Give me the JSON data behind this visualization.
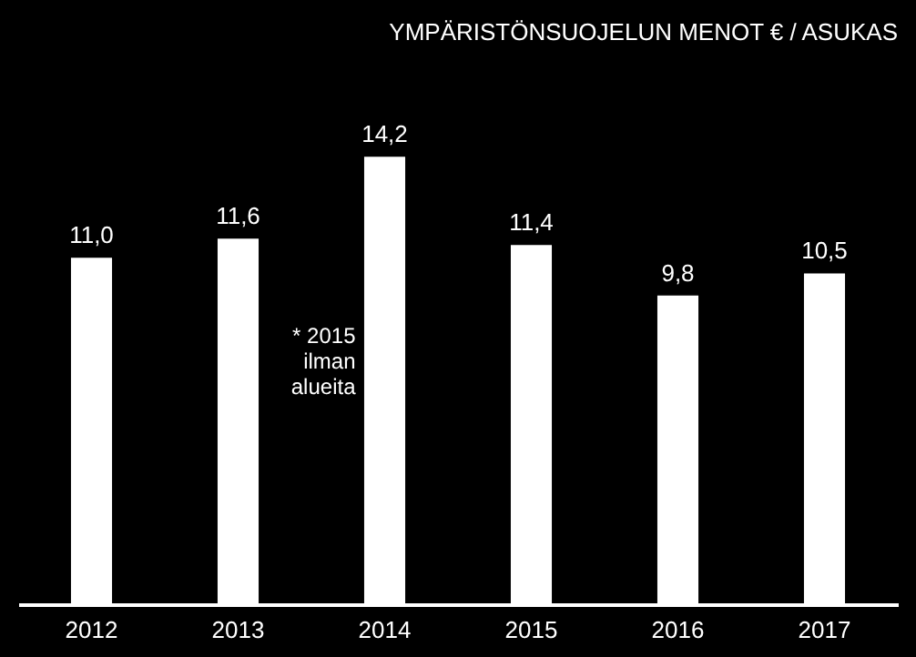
{
  "chart_data": {
    "type": "bar",
    "title": "YMPÄRISTÖNSUOJELUN  MENOT € / ASUKAS",
    "categories": [
      "2012",
      "2013",
      "2014",
      "2015",
      "2016",
      "2017"
    ],
    "values": [
      11.0,
      11.6,
      14.2,
      11.4,
      9.8,
      10.5
    ],
    "value_labels": [
      "11,0",
      "11,6",
      "14,2",
      "11,4",
      "9,8",
      "10,5"
    ],
    "color": "#ffffff",
    "tick_labels": "x",
    "grid": false,
    "annotations": [
      "* 2015 ilman alueita"
    ]
  }
}
